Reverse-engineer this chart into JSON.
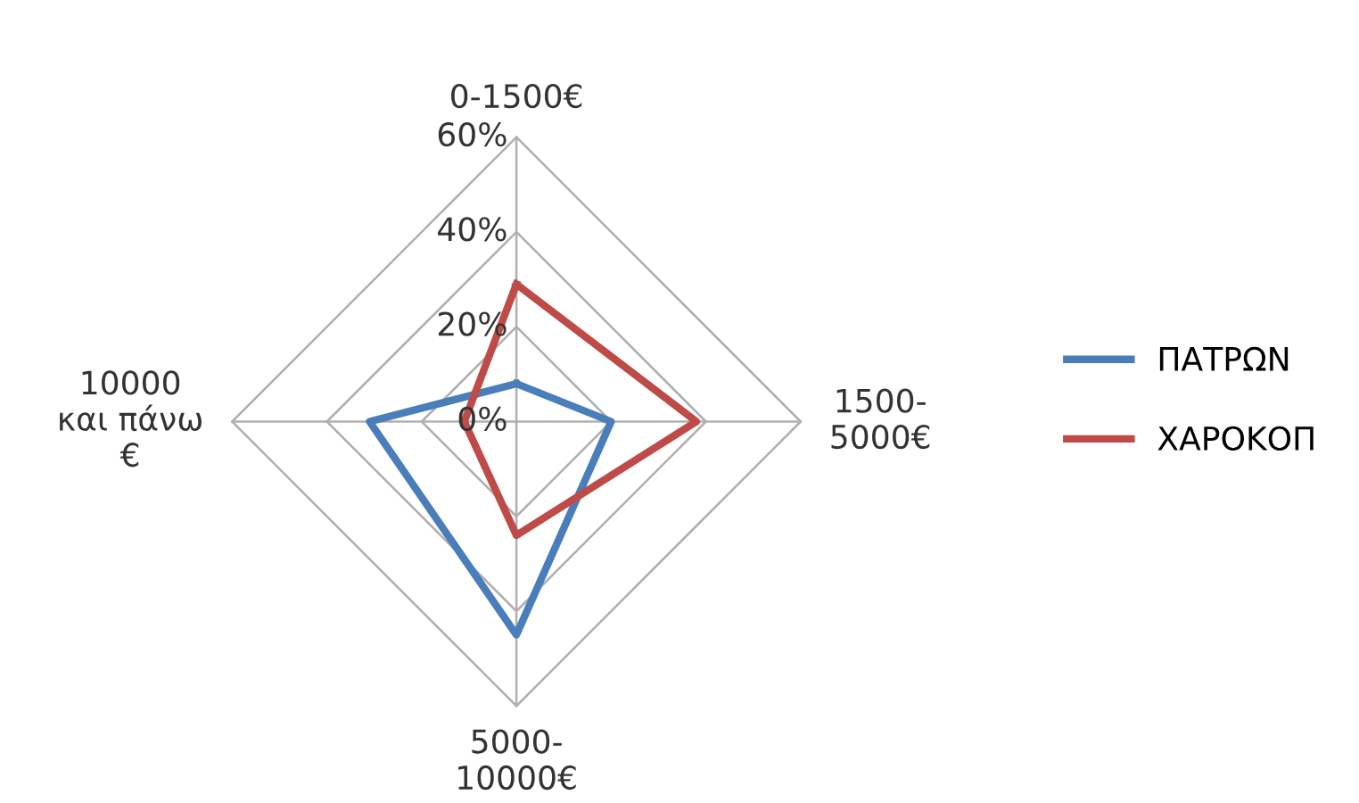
{
  "chart_data": {
    "type": "radar",
    "categories": [
      "0-1500€",
      "1500-\n5000€",
      "5000-\n10000€",
      "10000\nκαι πάνω\n€"
    ],
    "series": [
      {
        "name": "ΠΑΤΡΩΝ",
        "color": "#4a7ebb",
        "values": [
          8,
          20,
          45,
          31
        ]
      },
      {
        "name": "ΧΑΡΟΚΟΠ",
        "color": "#be4b48",
        "values": [
          29,
          38,
          24,
          11
        ]
      }
    ],
    "ylim": [
      0,
      60
    ],
    "yticks": [
      {
        "value": 0,
        "label": "0%"
      },
      {
        "value": 20,
        "label": "20%"
      },
      {
        "value": 40,
        "label": "40%"
      },
      {
        "value": 60,
        "label": "60%"
      }
    ],
    "grid": true,
    "legend": "right",
    "marker": "none",
    "line_style": "solid"
  }
}
